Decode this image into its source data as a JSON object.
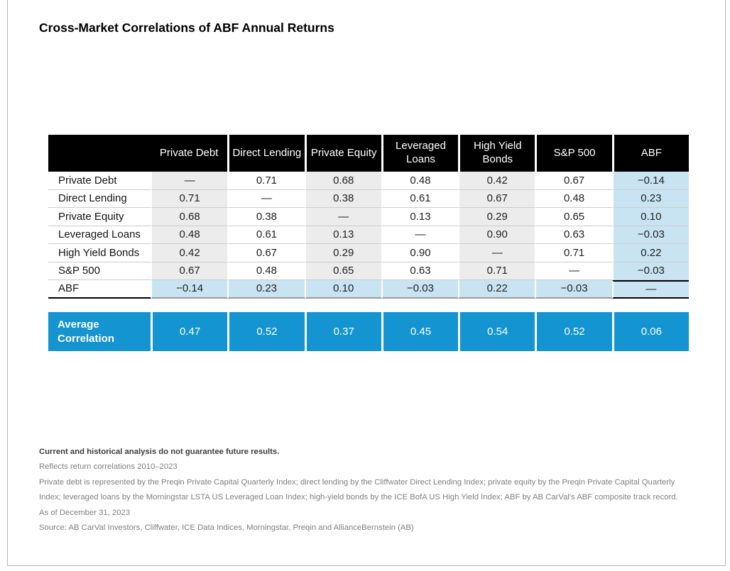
{
  "title": "Cross-Market Correlations of ABF Annual Returns",
  "chart_data": {
    "type": "table",
    "title": "Cross-Market Correlations of ABF Annual Returns",
    "columns": [
      "Private Debt",
      "Direct Lending",
      "Private Equity",
      "Leveraged Loans",
      "High Yield Bonds",
      "S&P 500",
      "ABF"
    ],
    "row_labels": [
      "Private Debt",
      "Direct Lending",
      "Private Equity",
      "Leveraged Loans",
      "High Yield Bonds",
      "S&P 500",
      "ABF"
    ],
    "matrix": [
      [
        "—",
        "0.71",
        "0.68",
        "0.48",
        "0.42",
        "0.67",
        "−0.14"
      ],
      [
        "0.71",
        "—",
        "0.38",
        "0.61",
        "0.67",
        "0.48",
        "0.23"
      ],
      [
        "0.68",
        "0.38",
        "—",
        "0.13",
        "0.29",
        "0.65",
        "0.10"
      ],
      [
        "0.48",
        "0.61",
        "0.13",
        "—",
        "0.90",
        "0.63",
        "−0.03"
      ],
      [
        "0.42",
        "0.67",
        "0.29",
        "0.90",
        "—",
        "0.71",
        "0.22"
      ],
      [
        "0.67",
        "0.48",
        "0.65",
        "0.63",
        "0.71",
        "—",
        "−0.03"
      ],
      [
        "−0.14",
        "0.23",
        "0.10",
        "−0.03",
        "0.22",
        "−0.03",
        "—"
      ]
    ],
    "average_row": {
      "label": "Average Correlation",
      "values": [
        "0.47",
        "0.52",
        "0.37",
        "0.45",
        "0.54",
        "0.52",
        "0.06"
      ]
    },
    "legend_position": "none",
    "grid": "row-dividers"
  },
  "footnotes": [
    "Current and historical analysis do not guarantee future results.",
    "Reflects return correlations 2010–2023",
    "Private debt is represented by the Preqin Private Capital Quarterly Index; direct lending by the Cliffwater Direct Lending Index; private equity by the Preqin Private Capital Quarterly Index; leveraged loans by the Morningstar LSTA US Leveraged Loan Index; high-yield bonds by the ICE BofA US High Yield Index; ABF by AB CarVal's ABF composite track record.",
    "As of December 31, 2023",
    "Source: AB CarVal Investors, Cliffwater, ICE Data Indices, Morningstar, Preqin and AllianceBernstein (AB)"
  ],
  "colors": {
    "header_bg": "#000000",
    "accent_blue": "#1494d0",
    "abf_highlight": "#c8e4f2",
    "column_shade": "#ececec",
    "row_divider": "#cccccc",
    "frame_border": "#b5b5b5"
  }
}
